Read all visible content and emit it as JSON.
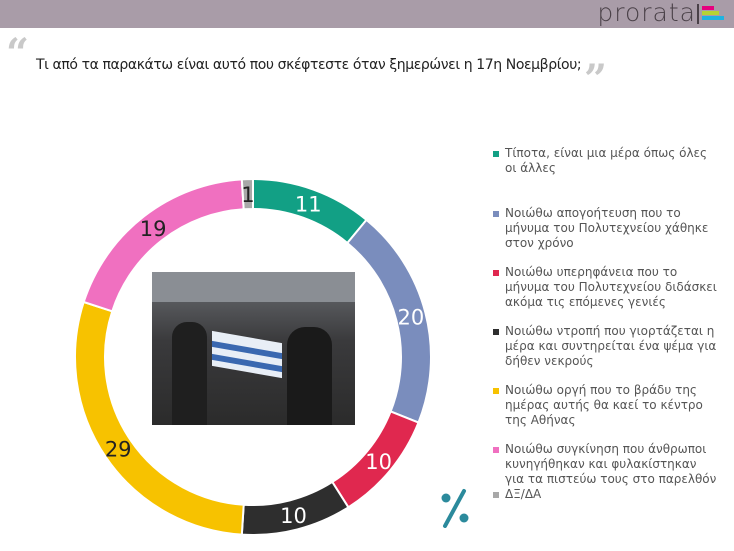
{
  "brand": {
    "logo_text": "prorata",
    "logo_colors": [
      "#e6007e",
      "#b5d334",
      "#1fb3e0"
    ]
  },
  "question": "Τι από τα παρακάτω είναι αυτό που σκέφτεστε όταν ξημερώνει η 17η Νοεμβρίου;",
  "chart_data": {
    "type": "donut",
    "title": "Τι από τα παρακάτω είναι αυτό που σκέφτεστε όταν ξημερώνει η 17η Νοεμβρίου;",
    "unit": "%",
    "legend_position": "right",
    "slices": [
      {
        "label": "Τίποτα, είναι μια μέρα όπως όλες οι άλλες",
        "value": 11,
        "color": "#12a085"
      },
      {
        "label": "Νοιώθω απογοήτευση που το μήνυμα του Πολυτεχνείου χάθηκε στον χρόνο",
        "value": 20,
        "color": "#7a8dbd"
      },
      {
        "label": "Νοιώθω υπερηφάνεια που το μήνυμα του Πολυτεχνείου διδάσκει ακόμα τις επόμενες γενιές",
        "value": 10,
        "color": "#e0284f"
      },
      {
        "label": "Νοιώθω ντροπή που γιορτάζεται η μέρα και συντηρείται ένα ψέμα για δήθεν νεκρούς",
        "value": 10,
        "color": "#2e2e2e"
      },
      {
        "label": "Νοιώθω οργή που το βράδυ της ημέρας αυτής θα καεί το κέντρο της Αθήνας",
        "value": 29,
        "color": "#f7c200"
      },
      {
        "label": "Νοιώθω συγκίνηση που άνθρωποι κυνηγήθηκαν και φυλακίστηκαν για τα πιστεύω τους στο παρελθόν",
        "value": 19,
        "color": "#f070c0"
      },
      {
        "label": "ΔΞ/ΔΑ",
        "value": 1,
        "color": "#a8a8a8"
      }
    ]
  }
}
